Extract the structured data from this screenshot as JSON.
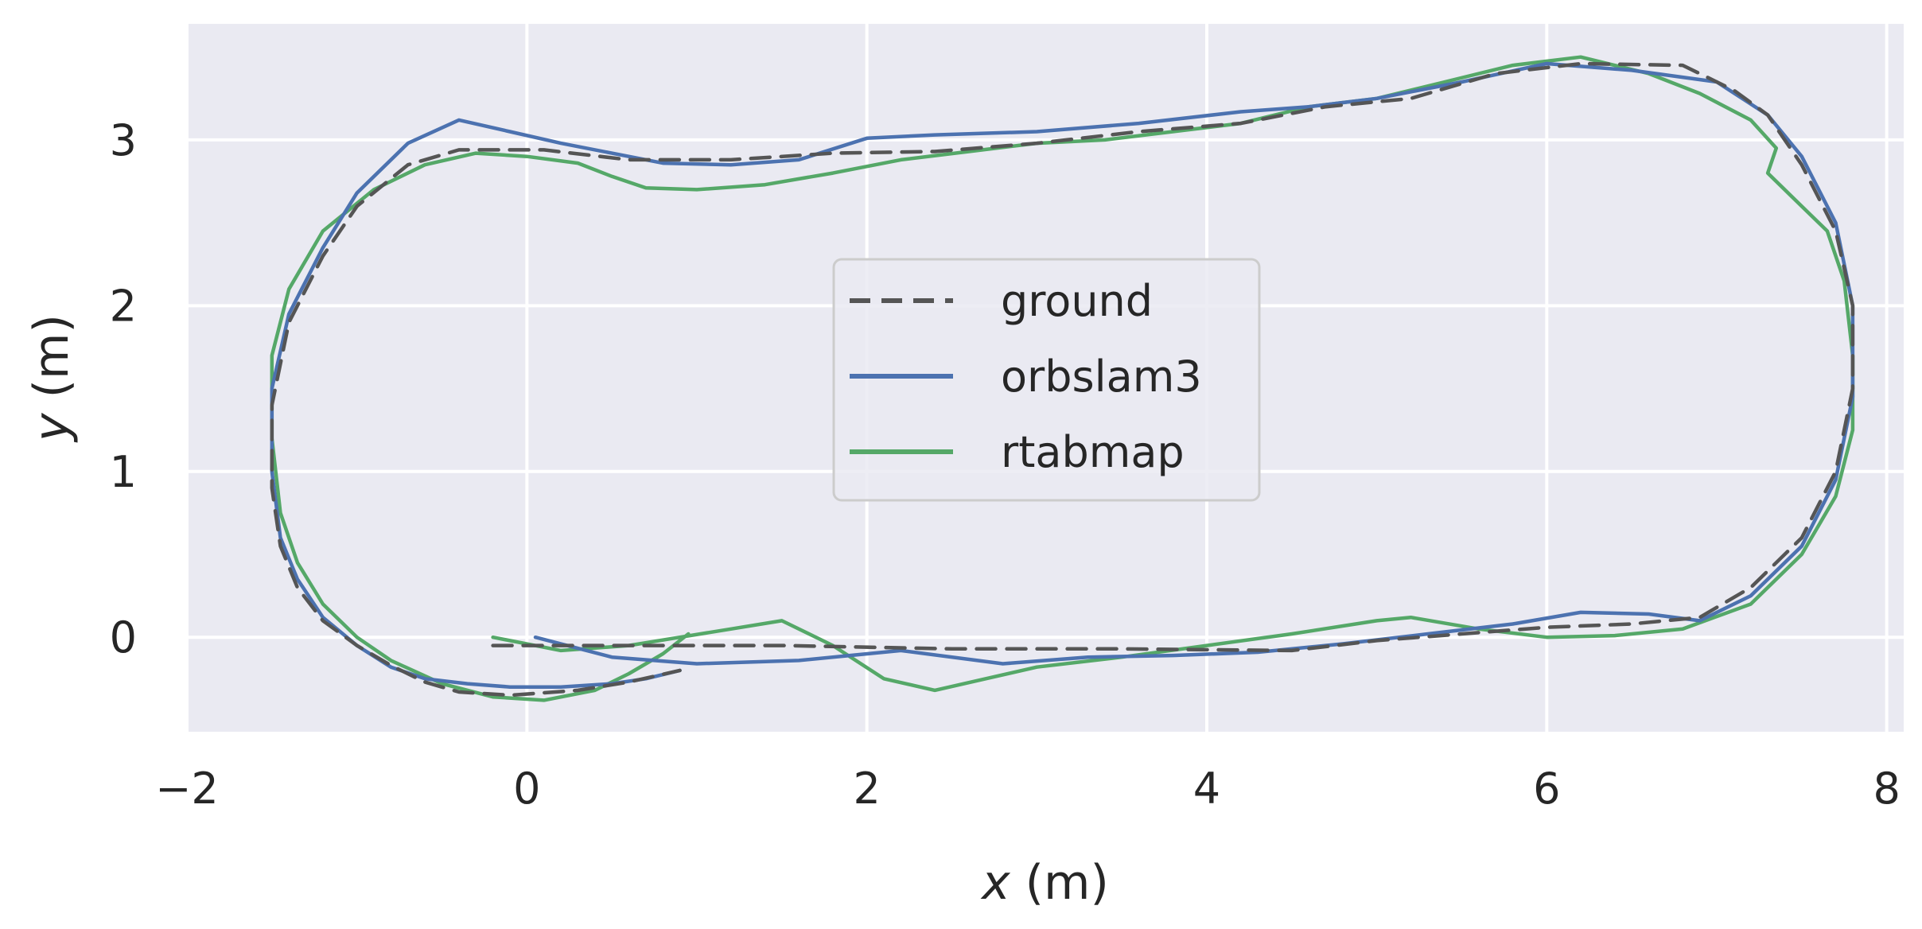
{
  "chart_data": {
    "type": "line",
    "xlabel": {
      "var": "x",
      "unit": " (m)"
    },
    "ylabel": {
      "var": "y",
      "unit": " (m)"
    },
    "xlim": [
      -2.0,
      8.1
    ],
    "ylim": [
      -0.57,
      3.7
    ],
    "xticks": [
      -2,
      0,
      2,
      4,
      6,
      8
    ],
    "xtick_labels": [
      "−2",
      "0",
      "2",
      "4",
      "6",
      "8"
    ],
    "yticks": [
      0,
      1,
      2,
      3
    ],
    "ytick_labels": [
      "0",
      "1",
      "2",
      "3"
    ],
    "grid": true,
    "legend_placement": "center",
    "colors": {
      "background": "#eaeaf2",
      "grid": "#ffffff",
      "ground": "#555555",
      "orbslam3": "#4c72b0",
      "rtabmap": "#55a868"
    },
    "series": [
      {
        "name": "ground",
        "style": "dashed",
        "color": "#555555",
        "x": [
          -0.2,
          0.5,
          1.5,
          2.5,
          3.5,
          4.5,
          5.0,
          5.5,
          6.0,
          6.5,
          6.9,
          7.2,
          7.5,
          7.7,
          7.8,
          7.8,
          7.7,
          7.5,
          7.3,
          7.1,
          6.8,
          6.2,
          5.7,
          5.2,
          4.7,
          4.2,
          3.6,
          3.0,
          2.4,
          1.8,
          1.2,
          0.6,
          0.1,
          -0.4,
          -0.7,
          -1.0,
          -1.2,
          -1.4,
          -1.5,
          -1.5,
          -1.45,
          -1.35,
          -1.2,
          -1.0,
          -0.8,
          -0.6,
          -0.4,
          -0.1,
          0.3,
          0.6,
          0.9
        ],
        "y": [
          -0.05,
          -0.05,
          -0.05,
          -0.07,
          -0.07,
          -0.08,
          -0.02,
          0.02,
          0.06,
          0.08,
          0.12,
          0.3,
          0.6,
          1.0,
          1.5,
          2.0,
          2.45,
          2.85,
          3.15,
          3.3,
          3.45,
          3.46,
          3.4,
          3.25,
          3.2,
          3.1,
          3.05,
          2.98,
          2.93,
          2.92,
          2.88,
          2.88,
          2.94,
          2.94,
          2.85,
          2.6,
          2.3,
          1.9,
          1.4,
          0.9,
          0.55,
          0.3,
          0.1,
          -0.05,
          -0.17,
          -0.27,
          -0.33,
          -0.35,
          -0.32,
          -0.27,
          -0.2
        ]
      },
      {
        "name": "orbslam3",
        "style": "solid",
        "color": "#4c72b0",
        "x": [
          0.05,
          0.5,
          1.0,
          1.6,
          2.2,
          2.8,
          3.3,
          3.8,
          4.3,
          4.8,
          5.3,
          5.8,
          6.2,
          6.6,
          6.9,
          7.2,
          7.5,
          7.7,
          7.8,
          7.8,
          7.7,
          7.5,
          7.3,
          7.0,
          6.5,
          6.0,
          5.5,
          5.0,
          4.6,
          4.2,
          3.6,
          3.0,
          2.4,
          2.0,
          1.6,
          1.2,
          0.8,
          0.5,
          0.2,
          -0.1,
          -0.4,
          -0.7,
          -1.0,
          -1.2,
          -1.4,
          -1.5,
          -1.5,
          -1.45,
          -1.35,
          -1.2,
          -1.0,
          -0.8,
          -0.6,
          -0.35,
          -0.1,
          0.2,
          0.5,
          0.7,
          0.9
        ],
        "y": [
          0.0,
          -0.12,
          -0.16,
          -0.14,
          -0.08,
          -0.16,
          -0.12,
          -0.11,
          -0.09,
          -0.04,
          0.02,
          0.08,
          0.15,
          0.14,
          0.1,
          0.25,
          0.55,
          0.95,
          1.45,
          2.0,
          2.5,
          2.9,
          3.15,
          3.35,
          3.42,
          3.46,
          3.35,
          3.25,
          3.2,
          3.17,
          3.1,
          3.05,
          3.03,
          3.01,
          2.88,
          2.85,
          2.86,
          2.92,
          2.98,
          3.05,
          3.12,
          2.98,
          2.68,
          2.35,
          1.95,
          1.5,
          1.0,
          0.6,
          0.35,
          0.12,
          -0.05,
          -0.18,
          -0.25,
          -0.28,
          -0.3,
          -0.3,
          -0.28,
          -0.25,
          -0.2
        ]
      },
      {
        "name": "rtabmap",
        "style": "solid",
        "color": "#55a868",
        "x": [
          -0.2,
          0.2,
          0.6,
          0.9,
          1.2,
          1.5,
          1.8,
          2.1,
          2.4,
          2.7,
          3.0,
          3.5,
          4.0,
          4.5,
          5.0,
          5.2,
          5.6,
          6.0,
          6.4,
          6.8,
          7.2,
          7.5,
          7.7,
          7.8,
          7.8,
          7.75,
          7.65,
          7.45,
          7.3,
          7.35,
          7.2,
          6.9,
          6.6,
          6.2,
          5.8,
          5.4,
          5.0,
          4.6,
          4.2,
          3.8,
          3.4,
          3.0,
          2.6,
          2.2,
          1.8,
          1.4,
          1.0,
          0.7,
          0.5,
          0.3,
          0.0,
          -0.3,
          -0.6,
          -0.9,
          -1.2,
          -1.4,
          -1.5,
          -1.5,
          -1.45,
          -1.35,
          -1.2,
          -1.0,
          -0.8,
          -0.5,
          -0.2,
          0.1,
          0.4,
          0.6,
          0.8,
          0.95
        ],
        "y": [
          0.0,
          -0.08,
          -0.05,
          0.0,
          0.05,
          0.1,
          -0.05,
          -0.25,
          -0.32,
          -0.25,
          -0.18,
          -0.12,
          -0.05,
          0.02,
          0.1,
          0.12,
          0.05,
          0.0,
          0.01,
          0.05,
          0.2,
          0.5,
          0.85,
          1.25,
          1.7,
          2.15,
          2.45,
          2.65,
          2.8,
          2.95,
          3.12,
          3.28,
          3.4,
          3.5,
          3.45,
          3.35,
          3.25,
          3.2,
          3.1,
          3.05,
          3.0,
          2.98,
          2.93,
          2.88,
          2.8,
          2.73,
          2.7,
          2.71,
          2.78,
          2.86,
          2.9,
          2.92,
          2.85,
          2.7,
          2.45,
          2.1,
          1.7,
          1.2,
          0.75,
          0.45,
          0.2,
          0.0,
          -0.14,
          -0.28,
          -0.36,
          -0.38,
          -0.32,
          -0.22,
          -0.1,
          0.02
        ]
      }
    ]
  }
}
